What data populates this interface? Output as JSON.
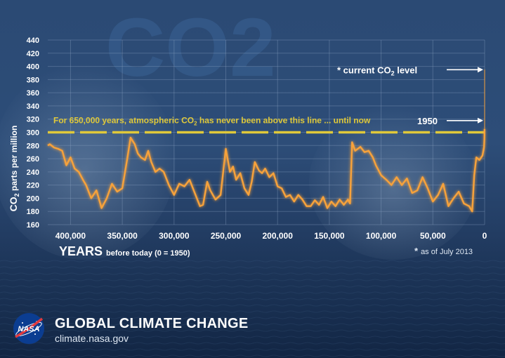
{
  "chart_data": {
    "type": "line",
    "title": "CO2",
    "xlabel": "YEARS",
    "xlabel_suffix": "before today (0 = 1950)",
    "ylabel_prefix": "CO",
    "ylabel_sub": "2",
    "ylabel_suffix": " parts per million",
    "xlim": [
      422000,
      -10
    ],
    "ylim": [
      160,
      440
    ],
    "x_tick_values": [
      400000,
      350000,
      300000,
      250000,
      200000,
      150000,
      100000,
      50000,
      0
    ],
    "x_tick_labels": [
      "400,000",
      "350,000",
      "300,000",
      "250,000",
      "200,000",
      "150,000",
      "100,000",
      "50,000",
      "0"
    ],
    "y_tick_values": [
      160,
      180,
      200,
      220,
      240,
      260,
      280,
      300,
      320,
      340,
      360,
      380,
      400,
      420,
      440
    ],
    "y_tick_labels": [
      "160",
      "180",
      "200",
      "220",
      "240",
      "260",
      "280",
      "300",
      "320",
      "340",
      "360",
      "380",
      "400",
      "420",
      "440"
    ],
    "grid": true,
    "series": [
      {
        "name": "",
        "color": "#f7a23a",
        "x": [
          422000,
          420000,
          416000,
          412000,
          408000,
          404000,
          400000,
          396000,
          392000,
          388000,
          385000,
          380000,
          375000,
          370000,
          365000,
          360000,
          355000,
          350000,
          345000,
          342000,
          338000,
          335000,
          332000,
          328000,
          325000,
          322000,
          318000,
          314000,
          310000,
          305000,
          300000,
          295000,
          290000,
          285000,
          280000,
          275000,
          272000,
          268000,
          265000,
          260000,
          255000,
          250000,
          246000,
          243000,
          240000,
          236000,
          232000,
          228000,
          225000,
          222000,
          218000,
          215000,
          212000,
          208000,
          204000,
          200000,
          196000,
          192000,
          188000,
          184000,
          180000,
          176000,
          172000,
          168000,
          164000,
          160000,
          156000,
          152000,
          148000,
          144000,
          140000,
          136000,
          132000,
          130000,
          128000,
          125000,
          120000,
          116000,
          112000,
          108000,
          105000,
          100000,
          95000,
          90000,
          85000,
          80000,
          75000,
          70000,
          65000,
          60000,
          55000,
          50000,
          45000,
          40000,
          35000,
          30000,
          25000,
          20000,
          15000,
          12000,
          10000,
          8000,
          5000,
          2000,
          500,
          200,
          50
        ],
        "values": [
          280,
          282,
          277,
          275,
          272,
          250,
          262,
          245,
          240,
          228,
          220,
          200,
          212,
          185,
          200,
          222,
          210,
          215,
          262,
          292,
          282,
          268,
          262,
          258,
          272,
          255,
          240,
          245,
          240,
          220,
          205,
          222,
          218,
          228,
          208,
          188,
          190,
          225,
          212,
          198,
          205,
          275,
          240,
          248,
          228,
          238,
          215,
          205,
          225,
          255,
          242,
          238,
          245,
          232,
          238,
          218,
          215,
          202,
          205,
          195,
          205,
          198,
          188,
          188,
          197,
          190,
          202,
          185,
          195,
          188,
          198,
          190,
          198,
          192,
          285,
          272,
          278,
          270,
          272,
          262,
          250,
          235,
          228,
          220,
          232,
          220,
          230,
          208,
          212,
          232,
          215,
          195,
          205,
          222,
          188,
          200,
          210,
          192,
          188,
          180,
          235,
          262,
          258,
          265,
          278,
          290,
          305
        ]
      },
      {
        "name": "",
        "color": "#f7a23a",
        "x": [
          50,
          0
        ],
        "values": [
          305,
          395
        ]
      }
    ],
    "threshold": {
      "value": 300,
      "label_prefix": "For 650,000 years, atmospheric CO",
      "label_sub": "2",
      "label_suffix": " has never been above this line ... until now",
      "color": "#e0c93a"
    },
    "annotations": {
      "current": {
        "x": 0,
        "y": 395,
        "prefix": "* current CO",
        "sub": "2",
        "suffix": " level"
      },
      "y1950": {
        "x": 0,
        "y": 305,
        "text": "1950"
      },
      "note": {
        "star": "*",
        "text": "as of July 2013"
      }
    }
  },
  "footer": {
    "title": "GLOBAL CLIMATE CHANGE",
    "url": "climate.nasa.gov",
    "logo_text": "NASA",
    "logo_icon": "nasa-meatball-icon"
  },
  "colors": {
    "line": "#f7a23a",
    "threshold": "#e0c93a",
    "text": "#ffffff",
    "background": "#2b4a74"
  }
}
